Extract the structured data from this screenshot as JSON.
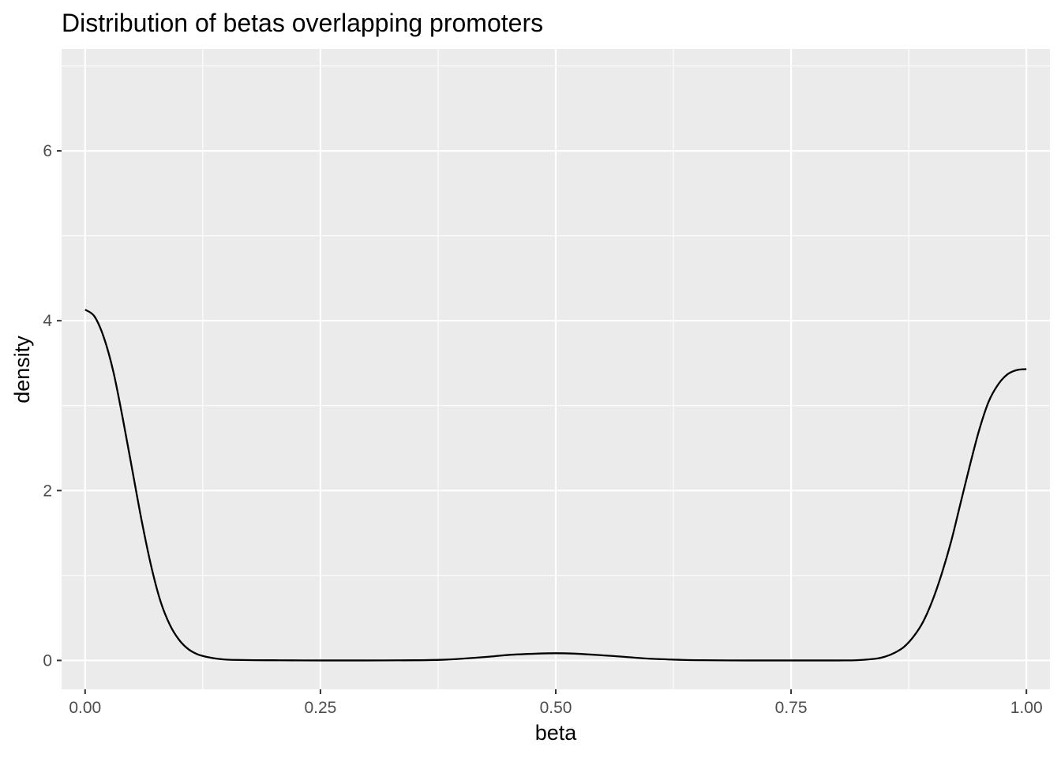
{
  "chart_data": {
    "type": "line",
    "title": "Distribution of betas overlapping promoters",
    "xlabel": "beta",
    "ylabel": "density",
    "xlim": [
      -0.025,
      1.025
    ],
    "ylim": [
      -0.34,
      7.2
    ],
    "x_ticks": [
      {
        "value": 0.0,
        "label": "0.00"
      },
      {
        "value": 0.25,
        "label": "0.25"
      },
      {
        "value": 0.5,
        "label": "0.50"
      },
      {
        "value": 0.75,
        "label": "0.75"
      },
      {
        "value": 1.0,
        "label": "1.00"
      }
    ],
    "y_ticks": [
      {
        "value": 0,
        "label": "0"
      },
      {
        "value": 2,
        "label": "2"
      },
      {
        "value": 4,
        "label": "4"
      },
      {
        "value": 6,
        "label": "6"
      }
    ],
    "x_minor": [
      0.125,
      0.375,
      0.625,
      0.875
    ],
    "y_minor": [
      1,
      3,
      5,
      7
    ],
    "grid": true,
    "panel_color": "#ebebeb",
    "grid_color": "#ffffff",
    "line_color": "#000000",
    "series": [
      {
        "x": [
          0.0,
          0.01,
          0.02,
          0.03,
          0.04,
          0.05,
          0.06,
          0.07,
          0.08,
          0.09,
          0.1,
          0.11,
          0.12,
          0.13,
          0.14,
          0.15,
          0.16,
          0.18,
          0.2,
          0.22,
          0.25,
          0.3,
          0.35,
          0.38,
          0.4,
          0.43,
          0.45,
          0.48,
          0.5,
          0.52,
          0.55,
          0.57,
          0.6,
          0.63,
          0.65,
          0.7,
          0.75,
          0.8,
          0.82,
          0.84,
          0.85,
          0.86,
          0.87,
          0.88,
          0.89,
          0.9,
          0.91,
          0.92,
          0.93,
          0.94,
          0.95,
          0.96,
          0.97,
          0.98,
          0.99,
          1.0
        ],
        "y": [
          4.13,
          4.05,
          3.8,
          3.4,
          2.85,
          2.25,
          1.65,
          1.12,
          0.7,
          0.42,
          0.24,
          0.13,
          0.07,
          0.04,
          0.02,
          0.01,
          0.006,
          0.003,
          0.002,
          0.001,
          0.0,
          0.0,
          0.002,
          0.008,
          0.02,
          0.045,
          0.065,
          0.08,
          0.085,
          0.08,
          0.06,
          0.045,
          0.02,
          0.008,
          0.003,
          0.0,
          0.0,
          0.0,
          0.003,
          0.02,
          0.045,
          0.09,
          0.16,
          0.28,
          0.45,
          0.7,
          1.02,
          1.4,
          1.85,
          2.3,
          2.72,
          3.05,
          3.25,
          3.37,
          3.42,
          3.43
        ]
      }
    ]
  }
}
